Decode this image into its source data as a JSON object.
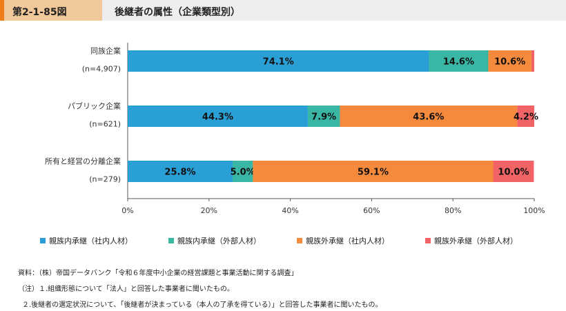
{
  "header": {
    "figure_number": "第2-1-85図",
    "title": "後継者の属性（企業類型別）"
  },
  "colors": {
    "internal_family": "#2a9fd6",
    "external_family": "#3ab7a4",
    "internal_nonfamily": "#f58a3c",
    "external_nonfamily": "#f26366",
    "header_bg": "#eeeeee",
    "tab_bg": "#f0c89a",
    "tab_accent": "#ee7d1a"
  },
  "chart_data": {
    "type": "bar",
    "orientation": "horizontal",
    "stacked": true,
    "categories": [
      {
        "name": "同族企業",
        "n": "(n=4,907)"
      },
      {
        "name": "パブリック企業",
        "n": "(n=621)"
      },
      {
        "name": "所有と経営の分離企業",
        "n": "(n=279)"
      }
    ],
    "series": [
      {
        "name": "親族内承継（社内人材）",
        "color": "#2a9fd6",
        "values": [
          74.1,
          44.3,
          25.8
        ],
        "labels": [
          "74.1%",
          "44.3%",
          "25.8%"
        ]
      },
      {
        "name": "親族内承継（外部人材）",
        "color": "#3ab7a4",
        "values": [
          14.6,
          7.9,
          5.0
        ],
        "labels": [
          "14.6%",
          "7.9%",
          "5.0%"
        ]
      },
      {
        "name": "親族外承継（社内人材）",
        "color": "#f58a3c",
        "values": [
          10.6,
          43.6,
          59.1
        ],
        "labels": [
          "10.6%",
          "43.6%",
          "59.1%"
        ]
      },
      {
        "name": "親族外承継（外部人材）",
        "color": "#f26366",
        "values": [
          0.7,
          4.2,
          10.0
        ],
        "labels": [
          "",
          "4.2%",
          "10.0%"
        ]
      }
    ],
    "xlim": [
      0,
      100
    ],
    "xticks": [
      "0%",
      "20%",
      "40%",
      "60%",
      "80%",
      "100%"
    ],
    "legend_position": "bottom"
  },
  "notes": {
    "source": "資料：（株）帝国データバンク「令和６年度中小企業の経営課題と事業活動に関する調査」",
    "note1": "（注）１.組織形態について「法人」と回答した事業者に聞いたもの。",
    "note2": "２.後継者の選定状況について、「後継者が決まっている（本人の了承を得ている）」と回答した事業者に聞いたもの。"
  }
}
